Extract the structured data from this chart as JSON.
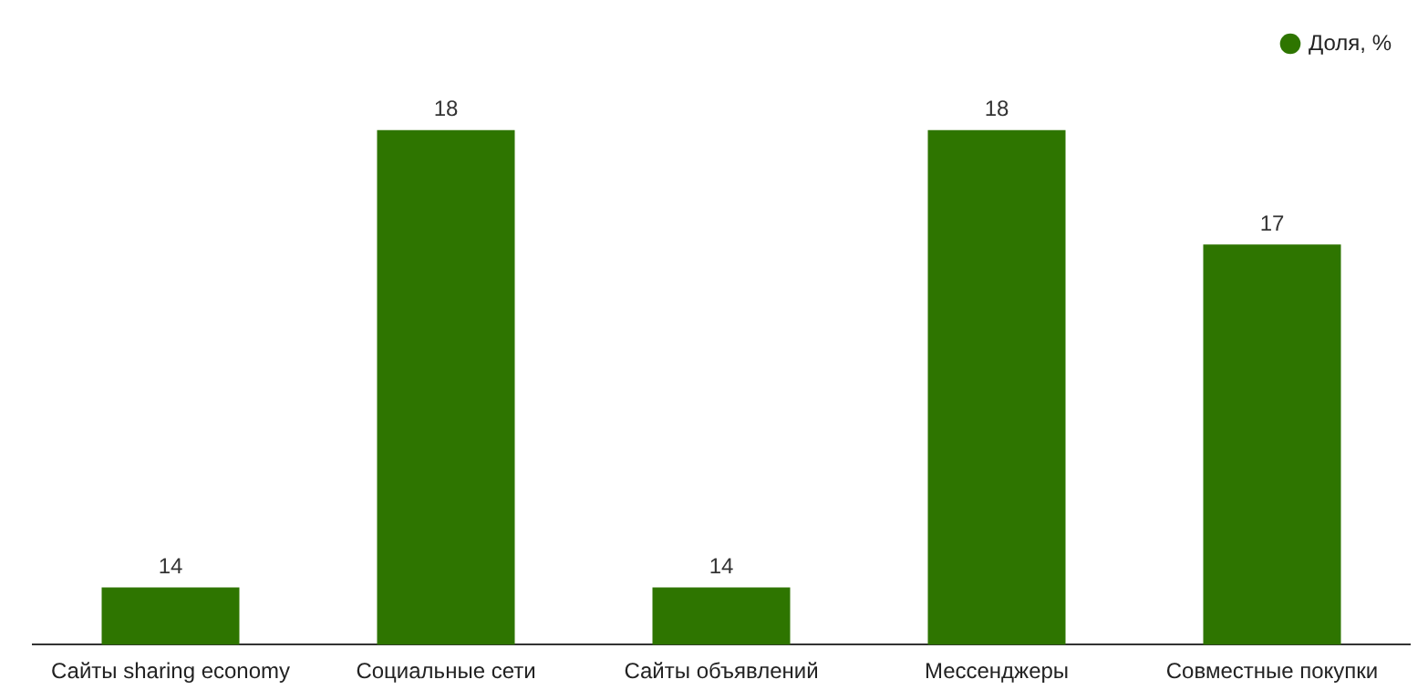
{
  "chart_data": {
    "type": "bar",
    "categories": [
      "Сайты sharing economy",
      "Социальные сети",
      "Сайты объявлений",
      "Мессенджеры",
      "Совместные покупки"
    ],
    "series": [
      {
        "name": "Доля, %",
        "color": "#2e7500",
        "values": [
          14,
          18,
          14,
          18,
          17
        ]
      }
    ],
    "data_labels": true,
    "legend": "top right",
    "grid": false,
    "tick_labels": "x"
  }
}
